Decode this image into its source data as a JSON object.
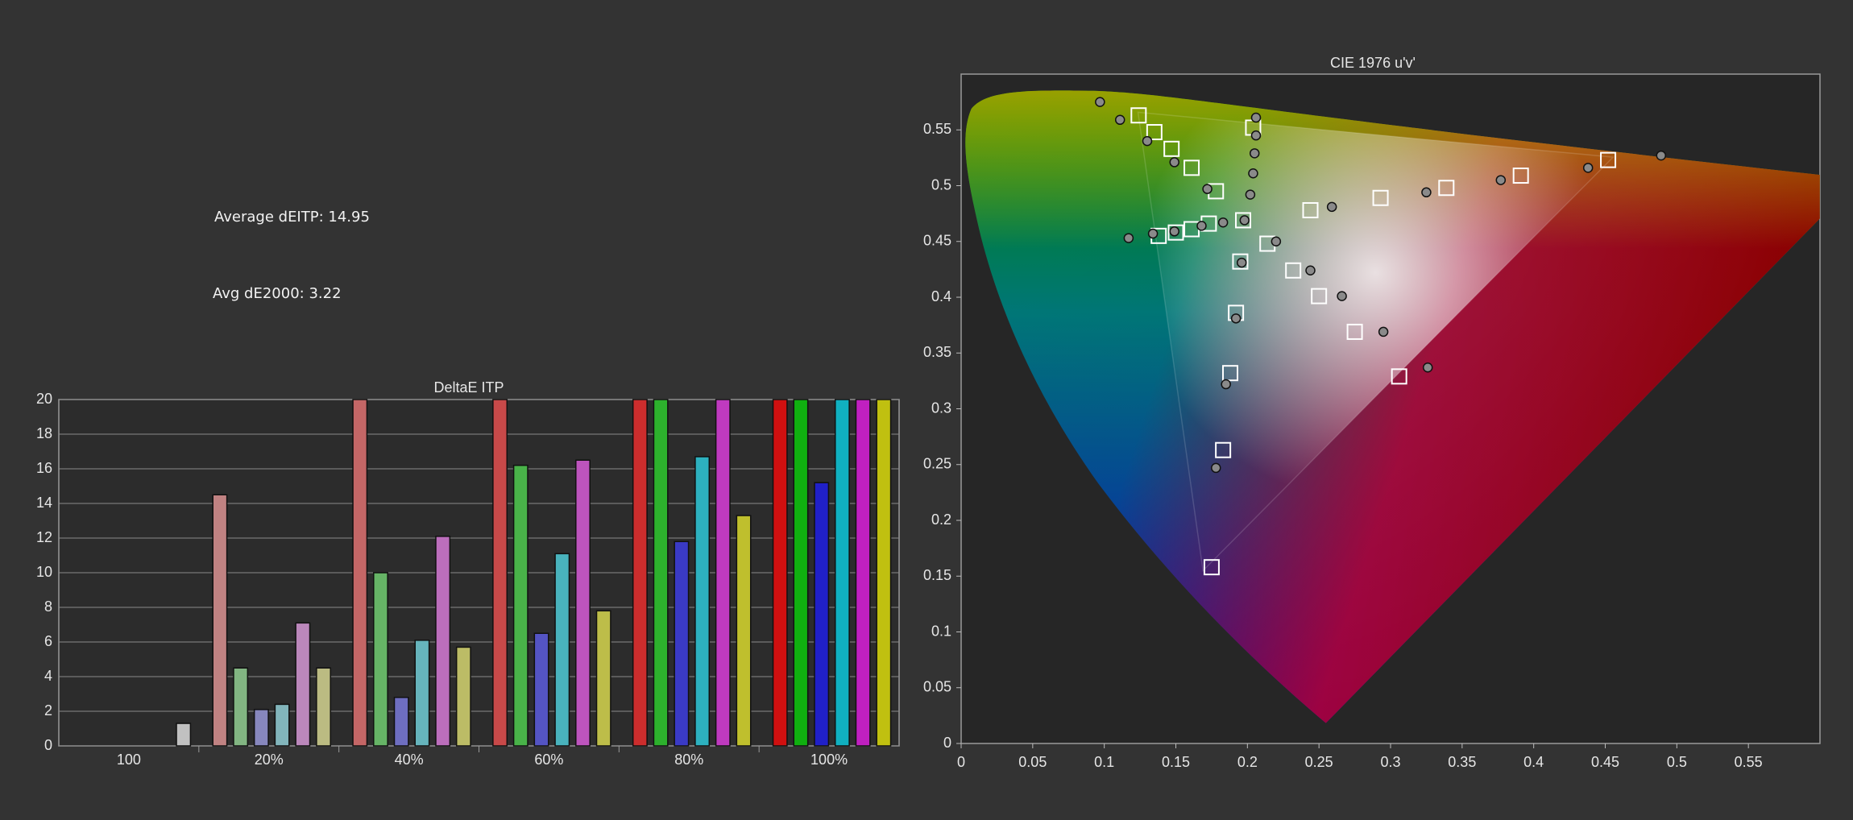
{
  "headline": {
    "average_deitp": "Average dEITP: 14.95",
    "avg_de2000": "Avg dE2000: 3.22"
  },
  "chart_data": [
    {
      "type": "bar",
      "title": "DeltaE ITP",
      "categories": [
        "100",
        "20%",
        "40%",
        "60%",
        "80%",
        "100%"
      ],
      "series": [
        {
          "color": "#d01010",
          "values": [
            null,
            14.5,
            20,
            20,
            20,
            20
          ]
        },
        {
          "color": "#10b010",
          "values": [
            null,
            4.5,
            10,
            16.2,
            20,
            20
          ]
        },
        {
          "color": "#2020c8",
          "values": [
            null,
            2.1,
            2.8,
            6.5,
            11.8,
            15.2
          ]
        },
        {
          "color": "#10b0c0",
          "values": [
            null,
            2.4,
            6.1,
            11.1,
            16.7,
            20
          ]
        },
        {
          "color": "#c020c0",
          "values": [
            null,
            7.1,
            12.1,
            16.5,
            20,
            20
          ]
        },
        {
          "color": "#c0c010",
          "values": [
            null,
            4.5,
            5.7,
            7.8,
            13.3,
            20
          ]
        },
        {
          "color": "#f4f4f4",
          "values": [
            1.3,
            null,
            null,
            null,
            null,
            null
          ]
        }
      ],
      "ylim": [
        0,
        20
      ],
      "yticks": [
        0,
        2,
        4,
        6,
        8,
        10,
        12,
        14,
        16,
        18,
        20
      ],
      "grid": true
    },
    {
      "type": "scatter",
      "title": "CIE 1976 u'v'",
      "series": [
        {
          "marker": "square",
          "color": "#ffffff",
          "x": [
            0.124,
            0.135,
            0.147,
            0.161,
            0.178,
            0.197,
            0.138,
            0.15,
            0.161,
            0.173,
            0.195,
            0.192,
            0.188,
            0.183,
            0.175,
            0.244,
            0.293,
            0.339,
            0.391,
            0.452,
            0.214,
            0.232,
            0.25,
            0.275,
            0.306,
            0.204
          ],
          "values": [
            0.563,
            0.548,
            0.533,
            0.516,
            0.495,
            0.469,
            0.455,
            0.458,
            0.461,
            0.466,
            0.432,
            0.386,
            0.332,
            0.263,
            0.158,
            0.478,
            0.489,
            0.498,
            0.509,
            0.523,
            0.448,
            0.424,
            0.401,
            0.369,
            0.329,
            0.552
          ]
        },
        {
          "marker": "circle",
          "color": "#8a8a8a",
          "x": [
            0.097,
            0.111,
            0.13,
            0.149,
            0.172,
            0.198,
            0.117,
            0.134,
            0.149,
            0.168,
            0.183,
            0.196,
            0.192,
            0.185,
            0.178,
            0.259,
            0.325,
            0.377,
            0.438,
            0.489,
            0.22,
            0.244,
            0.266,
            0.295,
            0.326,
            0.206,
            0.206,
            0.205,
            0.204,
            0.202
          ],
          "values": [
            0.575,
            0.559,
            0.54,
            0.521,
            0.497,
            0.469,
            0.453,
            0.457,
            0.459,
            0.464,
            0.467,
            0.431,
            0.381,
            0.322,
            0.247,
            0.481,
            0.494,
            0.505,
            0.516,
            0.527,
            0.45,
            0.424,
            0.401,
            0.369,
            0.337,
            0.561,
            0.545,
            0.529,
            0.511,
            0.492
          ]
        }
      ],
      "xlim": [
        0,
        0.6
      ],
      "ylim": [
        0,
        0.6
      ],
      "xticks": [
        0,
        0.05,
        0.1,
        0.15,
        0.2,
        0.25,
        0.3,
        0.35,
        0.4,
        0.45,
        0.5,
        0.55
      ],
      "yticks": [
        0,
        0.05,
        0.1,
        0.15,
        0.2,
        0.25,
        0.3,
        0.35,
        0.4,
        0.45,
        0.5,
        0.55
      ],
      "grid": false
    }
  ]
}
